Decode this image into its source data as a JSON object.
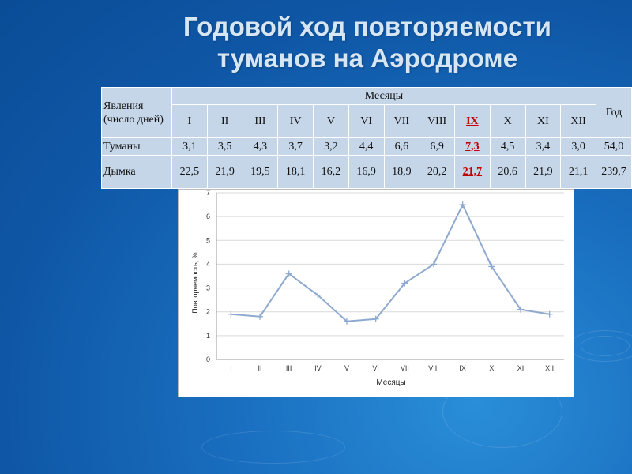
{
  "slide": {
    "title_line1": "Годовой ход повторяемости",
    "title_line2": "туманов на Аэродроме"
  },
  "table": {
    "header_phenomena": "Явления (число дней)",
    "header_months": "Месяцы",
    "header_year": "Год",
    "months": [
      "I",
      "II",
      "III",
      "IV",
      "V",
      "VI",
      "VII",
      "VIII",
      "IX",
      "X",
      "XI",
      "XII"
    ],
    "highlight_month_index": 8,
    "highlight_color": "#c00000",
    "rows": [
      {
        "label": "Туманы",
        "values": [
          "3,1",
          "3,5",
          "4,3",
          "3,7",
          "3,2",
          "4,4",
          "6,6",
          "6,9",
          "7,3",
          "4,5",
          "3,4",
          "3,0"
        ],
        "year": "54,0"
      },
      {
        "label": "Дымка",
        "values": [
          "22,5",
          "21,9",
          "19,5",
          "18,1",
          "16,2",
          "16,9",
          "18,9",
          "20,2",
          "21,7",
          "20,6",
          "21,9",
          "21,1"
        ],
        "year": "239,7"
      }
    ]
  },
  "chart_data": {
    "type": "line",
    "categories": [
      "I",
      "II",
      "III",
      "IV",
      "V",
      "VI",
      "VII",
      "VIII",
      "IX",
      "X",
      "XI",
      "XII"
    ],
    "series": [
      {
        "values": [
          1.9,
          1.8,
          3.6,
          2.7,
          1.6,
          1.7,
          3.2,
          4.0,
          6.5,
          3.9,
          2.1,
          1.9
        ],
        "color": "#8ea9cf"
      }
    ],
    "title": "",
    "xlabel": "Месяцы",
    "ylabel": "Повторяемость, %",
    "ylim": [
      0,
      7
    ],
    "yticks": [
      "0",
      "1",
      "2",
      "3",
      "4",
      "5",
      "6",
      "7"
    ],
    "grid": true,
    "marker": "plus"
  }
}
